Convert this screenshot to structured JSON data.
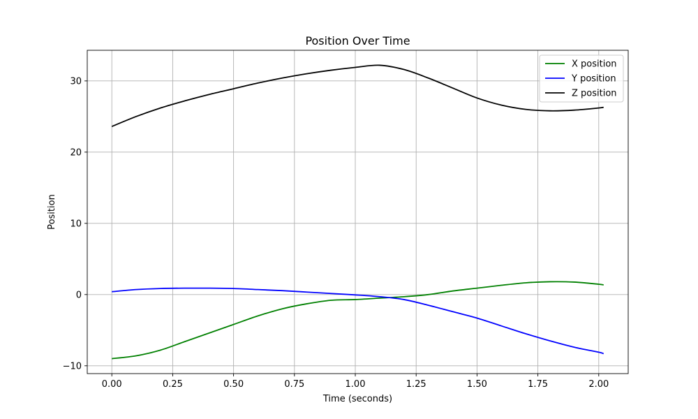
{
  "chart_data": {
    "type": "line",
    "title": "Position Over Time",
    "xlabel": "Time (seconds)",
    "ylabel": "Position",
    "xlim": [
      -0.101,
      2.121
    ],
    "ylim": [
      -11.1,
      34.3
    ],
    "xticks": [
      0.0,
      0.25,
      0.5,
      0.75,
      1.0,
      1.25,
      1.5,
      1.75,
      2.0
    ],
    "xtick_labels": [
      "0.00",
      "0.25",
      "0.50",
      "0.75",
      "1.00",
      "1.25",
      "1.50",
      "1.75",
      "2.00"
    ],
    "yticks": [
      -10,
      0,
      10,
      20,
      30
    ],
    "ytick_labels": [
      "−10",
      "0",
      "10",
      "20",
      "30"
    ],
    "grid": true,
    "legend_position": "top-right",
    "x": [
      0.0,
      0.1,
      0.2,
      0.3,
      0.4,
      0.5,
      0.6,
      0.7,
      0.8,
      0.9,
      1.0,
      1.1,
      1.2,
      1.3,
      1.4,
      1.5,
      1.6,
      1.7,
      1.8,
      1.9,
      2.0,
      2.02
    ],
    "series": [
      {
        "name": "X position",
        "color": "#008000",
        "values": [
          -9.0,
          -8.6,
          -7.8,
          -6.6,
          -5.4,
          -4.2,
          -3.0,
          -2.0,
          -1.3,
          -0.8,
          -0.7,
          -0.5,
          -0.3,
          0.0,
          0.5,
          0.9,
          1.3,
          1.65,
          1.8,
          1.75,
          1.45,
          1.35
        ]
      },
      {
        "name": "Y position",
        "color": "#0000ff",
        "values": [
          0.4,
          0.7,
          0.85,
          0.9,
          0.9,
          0.85,
          0.7,
          0.55,
          0.35,
          0.15,
          -0.05,
          -0.3,
          -0.7,
          -1.5,
          -2.4,
          -3.3,
          -4.4,
          -5.5,
          -6.5,
          -7.4,
          -8.1,
          -8.3
        ]
      },
      {
        "name": "Z position",
        "color": "#000000",
        "values": [
          23.6,
          25.0,
          26.2,
          27.2,
          28.1,
          28.9,
          29.7,
          30.4,
          31.0,
          31.5,
          31.9,
          32.2,
          31.6,
          30.4,
          29.0,
          27.6,
          26.6,
          26.0,
          25.8,
          25.9,
          26.2,
          26.3
        ]
      }
    ]
  }
}
